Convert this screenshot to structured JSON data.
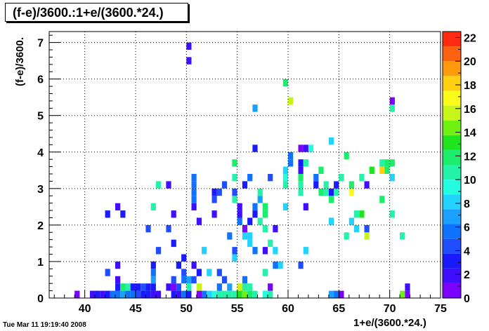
{
  "chart_data": {
    "type": "heatmap",
    "title": "(f-e)/3600.:1+e/(3600.*24.)",
    "xlabel": "1+e/(3600.*24.)",
    "ylabel": "(f-e)/3600.",
    "xlim": [
      36.5,
      75
    ],
    "ylim": [
      0,
      7.3
    ],
    "x_ticks": [
      40,
      45,
      50,
      55,
      60,
      65,
      70,
      75
    ],
    "y_ticks": [
      0,
      1,
      2,
      3,
      4,
      5,
      6,
      7
    ],
    "z_ticks": [
      0,
      2,
      4,
      6,
      8,
      10,
      12,
      14,
      16,
      18,
      20,
      22
    ],
    "zlim": [
      0,
      22.5
    ],
    "grid": true,
    "palette": [
      "#7a00ff",
      "#3f0dff",
      "#1a1aff",
      "#1f4dff",
      "#0f73ff",
      "#1aa0ff",
      "#22d2ff",
      "#23fce0",
      "#23f2a8",
      "#1bee6b",
      "#1ee51e",
      "#70f211",
      "#c8f518",
      "#fafb1a",
      "#ffd011",
      "#ff9a0f",
      "#ff620e",
      "#ff2a10"
    ],
    "cells": [
      [
        39,
        0,
        1
      ],
      [
        40.5,
        0,
        2
      ],
      [
        41,
        0,
        3
      ],
      [
        41.5,
        0,
        2
      ],
      [
        42,
        0,
        3
      ],
      [
        42.5,
        0,
        6
      ],
      [
        43,
        0,
        5
      ],
      [
        43.5,
        0,
        7
      ],
      [
        44,
        0,
        5
      ],
      [
        44.5,
        0,
        6
      ],
      [
        45,
        0,
        4
      ],
      [
        45.5,
        0,
        3
      ],
      [
        46,
        0,
        3
      ],
      [
        46.5,
        0,
        2
      ],
      [
        47,
        0,
        2
      ],
      [
        48.5,
        0,
        3
      ],
      [
        49,
        0,
        2
      ],
      [
        49.5,
        0,
        5
      ],
      [
        50,
        0,
        3
      ],
      [
        51,
        0,
        1
      ],
      [
        51.5,
        0,
        6
      ],
      [
        52,
        0,
        8
      ],
      [
        52.5,
        0,
        9
      ],
      [
        53,
        0,
        10
      ],
      [
        53.5,
        0,
        10
      ],
      [
        54,
        0,
        10
      ],
      [
        54.5,
        0,
        11
      ],
      [
        55,
        0,
        13
      ],
      [
        55.5,
        0,
        14
      ],
      [
        56,
        0,
        12
      ],
      [
        56.5,
        0,
        10
      ],
      [
        57.5,
        0,
        9
      ],
      [
        58,
        0,
        10
      ],
      [
        64,
        0,
        7
      ],
      [
        64.5,
        0,
        6
      ],
      [
        65,
        0,
        1
      ],
      [
        71,
        0,
        14
      ],
      [
        71.5,
        0,
        1
      ],
      [
        43,
        0.2,
        3
      ],
      [
        43.5,
        0.2,
        12
      ],
      [
        44,
        0.2,
        10
      ],
      [
        44.5,
        0.2,
        3
      ],
      [
        45,
        0.2,
        3
      ],
      [
        45.5,
        0.2,
        4
      ],
      [
        46,
        0.2,
        3
      ],
      [
        46.5,
        0.2,
        3
      ],
      [
        48,
        0.2,
        2
      ],
      [
        48.5,
        0.2,
        1
      ],
      [
        49,
        0.2,
        4
      ],
      [
        50,
        0.2,
        11
      ],
      [
        51,
        0.2,
        16
      ],
      [
        53,
        0.2,
        5
      ],
      [
        54,
        0.2,
        7
      ],
      [
        55,
        0.2,
        15
      ],
      [
        55.5,
        0.2,
        11
      ],
      [
        56,
        0.2,
        10
      ],
      [
        58,
        0.2,
        1
      ],
      [
        71.5,
        0.2,
        2
      ],
      [
        43,
        0.4,
        2
      ],
      [
        46.5,
        0.4,
        7
      ],
      [
        48.5,
        0.4,
        4
      ],
      [
        49.5,
        0.4,
        5
      ],
      [
        50,
        0.4,
        7
      ],
      [
        50.5,
        0.4,
        4
      ],
      [
        53.5,
        0.4,
        4
      ],
      [
        55.5,
        0.4,
        6
      ],
      [
        42,
        0.6,
        4
      ],
      [
        46.5,
        0.6,
        5
      ],
      [
        49.5,
        0.6,
        4
      ],
      [
        51,
        0.6,
        3
      ],
      [
        52,
        0.6,
        8
      ],
      [
        53,
        0.6,
        4
      ],
      [
        57.5,
        0.6,
        11
      ],
      [
        43,
        0.8,
        2
      ],
      [
        46.5,
        0.8,
        3
      ],
      [
        49,
        0.8,
        3
      ],
      [
        50.5,
        0.8,
        2
      ],
      [
        58.5,
        0.8,
        6
      ],
      [
        59,
        0.8,
        8
      ],
      [
        61,
        0.8,
        4
      ],
      [
        49.5,
        1,
        3
      ],
      [
        54.5,
        1,
        8
      ],
      [
        54.5,
        1.2,
        4
      ],
      [
        47,
        1.2,
        4
      ],
      [
        51.5,
        1.2,
        8
      ],
      [
        56.5,
        1.2,
        6
      ],
      [
        57.5,
        1.2,
        2
      ],
      [
        58.5,
        1.2,
        8
      ],
      [
        61.5,
        1.2,
        8
      ],
      [
        48.5,
        1.4,
        3
      ],
      [
        56,
        1.4,
        8
      ],
      [
        58,
        1.4,
        10
      ],
      [
        54,
        1.6,
        6
      ],
      [
        55.5,
        1.6,
        8
      ],
      [
        56,
        1.6,
        8
      ],
      [
        65.5,
        1.6,
        10
      ],
      [
        71,
        1.6,
        10
      ],
      [
        67.5,
        1.6,
        16
      ],
      [
        46,
        1.8,
        4
      ],
      [
        48,
        1.8,
        4
      ],
      [
        55.5,
        1.8,
        1
      ],
      [
        57.5,
        1.8,
        11
      ],
      [
        58.5,
        1.8,
        2
      ],
      [
        66.5,
        1.8,
        8
      ],
      [
        67.5,
        1.8,
        4
      ],
      [
        51,
        2,
        2
      ],
      [
        55,
        2,
        5
      ],
      [
        56,
        2,
        3
      ],
      [
        57,
        2,
        10
      ],
      [
        64,
        2,
        8
      ],
      [
        66,
        2,
        8
      ],
      [
        42,
        2.2,
        3
      ],
      [
        43.5,
        2.2,
        3
      ],
      [
        48.5,
        2.2,
        2
      ],
      [
        52.5,
        2.2,
        2
      ],
      [
        55,
        2.2,
        2
      ],
      [
        56.5,
        2.2,
        3
      ],
      [
        57.5,
        2.2,
        12
      ],
      [
        66.5,
        2.2,
        11
      ],
      [
        67,
        2.2,
        13
      ],
      [
        70,
        2.2,
        10
      ],
      [
        43,
        2.4,
        2
      ],
      [
        46.5,
        2.4,
        10
      ],
      [
        50.5,
        2.4,
        2
      ],
      [
        55,
        2.4,
        2
      ],
      [
        56.5,
        2.4,
        5
      ],
      [
        57.5,
        2.4,
        12
      ],
      [
        59.5,
        2.4,
        8
      ],
      [
        61.5,
        2.4,
        2
      ],
      [
        50.5,
        2.6,
        5
      ],
      [
        52.5,
        2.6,
        4
      ],
      [
        54.5,
        2.6,
        11
      ],
      [
        57,
        2.6,
        7
      ],
      [
        64,
        2.6,
        12
      ],
      [
        69,
        2.6,
        12
      ],
      [
        50.5,
        2.8,
        5
      ],
      [
        52.5,
        2.8,
        3
      ],
      [
        53,
        2.8,
        4
      ],
      [
        54.5,
        2.8,
        4
      ],
      [
        57,
        2.8,
        10
      ],
      [
        61,
        2.8,
        11
      ],
      [
        63,
        2.8,
        12
      ],
      [
        63.5,
        2.8,
        11
      ],
      [
        64,
        2.8,
        3
      ],
      [
        64.5,
        2.8,
        10
      ],
      [
        66,
        2.8,
        17
      ],
      [
        47,
        3,
        11
      ],
      [
        48,
        3,
        2
      ],
      [
        50.5,
        3,
        5
      ],
      [
        53.5,
        3,
        4
      ],
      [
        55.5,
        3,
        3
      ],
      [
        59.5,
        3,
        11
      ],
      [
        61,
        3,
        10
      ],
      [
        62.5,
        3,
        3
      ],
      [
        63.5,
        3,
        11
      ],
      [
        64.5,
        3,
        3
      ],
      [
        66,
        3,
        12
      ],
      [
        67.5,
        3,
        2
      ],
      [
        50.5,
        3.2,
        5
      ],
      [
        54.5,
        3.2,
        11
      ],
      [
        56,
        3.2,
        5
      ],
      [
        58,
        3.2,
        4
      ],
      [
        59.5,
        3.2,
        9
      ],
      [
        61,
        3.2,
        12
      ],
      [
        62.5,
        3.2,
        6
      ],
      [
        65,
        3.2,
        11
      ],
      [
        67,
        3.2,
        11
      ],
      [
        70,
        3.2,
        8
      ],
      [
        59.5,
        3.4,
        8
      ],
      [
        61,
        3.4,
        2
      ],
      [
        63,
        3.4,
        12
      ],
      [
        68,
        3.4,
        13
      ],
      [
        69,
        3.4,
        18
      ],
      [
        69.5,
        3.4,
        12
      ],
      [
        54.5,
        3.6,
        12
      ],
      [
        60,
        3.6,
        6
      ],
      [
        61,
        3.6,
        3
      ],
      [
        61.5,
        3.6,
        11
      ],
      [
        69,
        3.6,
        11
      ],
      [
        69.5,
        3.6,
        12
      ],
      [
        70,
        3.6,
        12
      ],
      [
        60,
        3.8,
        6
      ],
      [
        65.5,
        3.8,
        12
      ],
      [
        56.5,
        4,
        3
      ],
      [
        61,
        4,
        1
      ],
      [
        61.5,
        4,
        2
      ],
      [
        62,
        4,
        9
      ],
      [
        64,
        4.2,
        8
      ],
      [
        60,
        5.3,
        16
      ],
      [
        56.5,
        5.1,
        7
      ],
      [
        70,
        5.3,
        1
      ],
      [
        70,
        5.1,
        10
      ],
      [
        59.5,
        5.8,
        12
      ],
      [
        50,
        6.4,
        2
      ],
      [
        50,
        6.8,
        2
      ]
    ]
  },
  "footer": {
    "timestamp": "Tue Mar 11 19:19:40 2008"
  }
}
